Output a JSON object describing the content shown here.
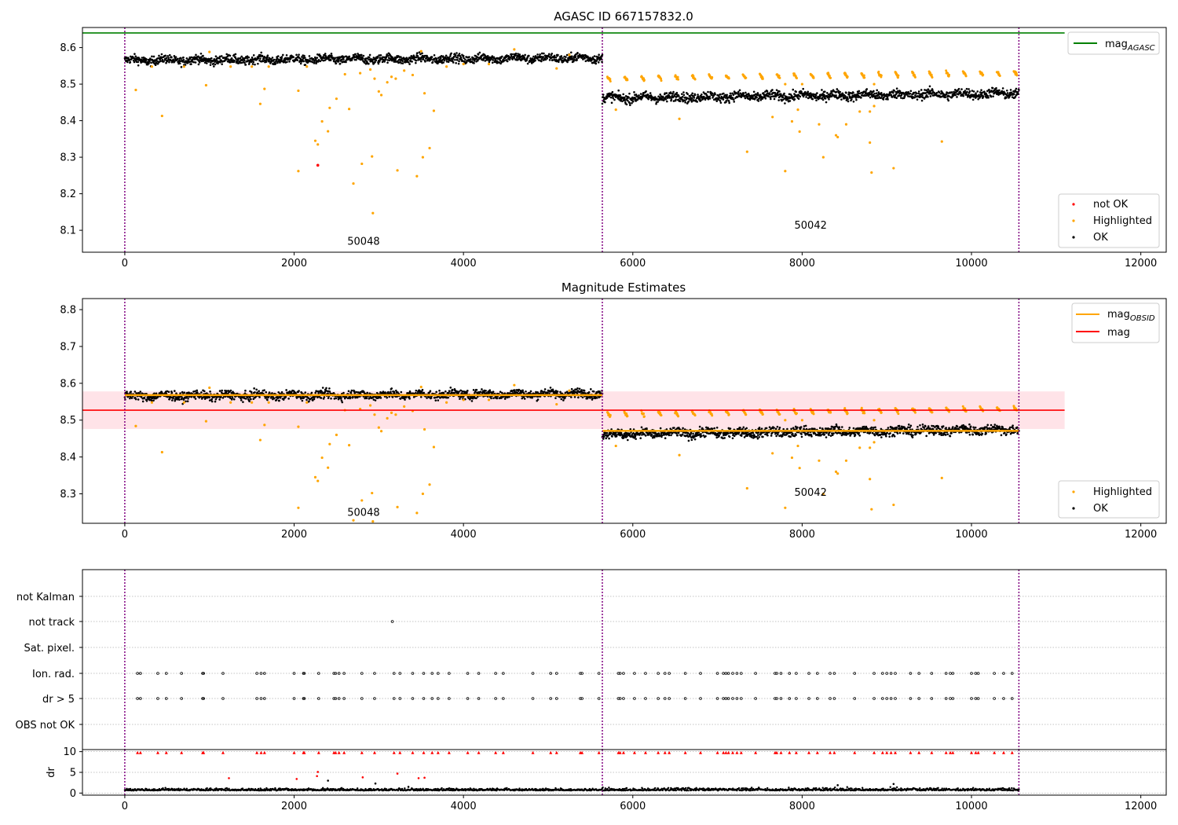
{
  "colors": {
    "ok": "#000000",
    "highlighted": "#FFA500",
    "not_ok": "#FF0000",
    "agasc_line": "#008000",
    "obsid_line": "#FFA500",
    "mag_line": "#FF0000",
    "mag_band": "#FFC0CB",
    "obs_boundary": "#800080",
    "grid": "#B0B0B0"
  },
  "chart_data": [
    {
      "type": "scatter",
      "title": "AGASC ID 667157832.0",
      "xlim": [
        -500,
        12300
      ],
      "ylim": [
        8.04,
        8.655
      ],
      "x_ticks": [
        0,
        2000,
        4000,
        6000,
        8000,
        10000,
        12000
      ],
      "y_ticks": [
        8.1,
        8.2,
        8.3,
        8.4,
        8.5,
        8.6
      ],
      "grid": false,
      "legends": [
        {
          "placement": "top-right",
          "entries": [
            {
              "label": "mag",
              "subscript": "AGASC",
              "marker": "line",
              "color": "#008000"
            }
          ]
        },
        {
          "placement": "bottom-right",
          "entries": [
            {
              "label": "not OK",
              "marker": "dot",
              "color": "#FF0000"
            },
            {
              "label": "Highlighted",
              "marker": "dot",
              "color": "#FFA500"
            },
            {
              "label": "OK",
              "marker": "dot",
              "color": "#000000"
            }
          ]
        }
      ],
      "hlines": [
        {
          "y": 8.64,
          "x_range": [
            -500,
            11100
          ],
          "color": "#008000",
          "name": "mag_AGASC"
        }
      ],
      "obs_boundaries": [
        0,
        5640,
        10560
      ],
      "obs_labels": [
        {
          "text": "50048",
          "x": 2820,
          "y": 8.06
        },
        {
          "text": "50042",
          "x": 8100,
          "y": 8.105
        }
      ],
      "series": [
        {
          "name": "OK",
          "segments": [
            {
              "x_range": [
                0,
                5640
              ],
              "level_start": 8.565,
              "level_end": 8.572,
              "spread": 0.01
            },
            {
              "x_range": [
                5640,
                10560
              ],
              "level_start": 8.462,
              "level_end": 8.475,
              "spread": 0.011
            }
          ]
        },
        {
          "name": "Highlighted",
          "points": [
            [
              130,
              8.484
            ],
            [
              320,
              8.548
            ],
            [
              440,
              8.413
            ],
            [
              700,
              8.548
            ],
            [
              960,
              8.497
            ],
            [
              1000,
              8.588
            ],
            [
              1250,
              8.548
            ],
            [
              1500,
              8.548
            ],
            [
              1600,
              8.446
            ],
            [
              1650,
              8.487
            ],
            [
              1700,
              8.548
            ],
            [
              2050,
              8.482
            ],
            [
              2050,
              8.262
            ],
            [
              2150,
              8.548
            ],
            [
              2250,
              8.345
            ],
            [
              2280,
              8.335
            ],
            [
              2330,
              8.398
            ],
            [
              2400,
              8.371
            ],
            [
              2420,
              8.435
            ],
            [
              2500,
              8.46
            ],
            [
              2600,
              8.527
            ],
            [
              2650,
              8.432
            ],
            [
              2700,
              8.228
            ],
            [
              2780,
              8.53
            ],
            [
              2800,
              8.282
            ],
            [
              2900,
              8.54
            ],
            [
              2920,
              8.302
            ],
            [
              2930,
              8.147
            ],
            [
              2950,
              8.515
            ],
            [
              3000,
              8.48
            ],
            [
              3030,
              8.47
            ],
            [
              3100,
              8.505
            ],
            [
              3150,
              8.52
            ],
            [
              3200,
              8.515
            ],
            [
              3220,
              8.264
            ],
            [
              3300,
              8.537
            ],
            [
              3400,
              8.525
            ],
            [
              3450,
              8.248
            ],
            [
              3500,
              8.59
            ],
            [
              3520,
              8.3
            ],
            [
              3540,
              8.475
            ],
            [
              3600,
              8.325
            ],
            [
              3650,
              8.427
            ],
            [
              3800,
              8.548
            ],
            [
              4000,
              8.555
            ],
            [
              4300,
              8.555
            ],
            [
              4600,
              8.595
            ],
            [
              5100,
              8.543
            ],
            [
              5250,
              8.58
            ],
            [
              5800,
              8.43
            ],
            [
              6550,
              8.405
            ],
            [
              7350,
              8.315
            ],
            [
              7650,
              8.41
            ],
            [
              7800,
              8.262
            ],
            [
              7880,
              8.398
            ],
            [
              7950,
              8.43
            ],
            [
              7970,
              8.37
            ],
            [
              8200,
              8.39
            ],
            [
              8250,
              8.3
            ],
            [
              8400,
              8.36
            ],
            [
              8420,
              8.355
            ],
            [
              8520,
              8.39
            ],
            [
              8680,
              8.425
            ],
            [
              8800,
              8.425
            ],
            [
              8800,
              8.34
            ],
            [
              8820,
              8.258
            ],
            [
              8850,
              8.5
            ],
            [
              9080,
              8.27
            ],
            [
              9650,
              8.343
            ],
            [
              7800,
              8.5
            ],
            [
              8000,
              8.5
            ],
            [
              8850,
              8.44
            ]
          ]
        },
        {
          "name": "Highlighted periodic",
          "x_start": 5700,
          "x_end": 10560,
          "period": 200,
          "level_start": 8.515,
          "level_end": 8.53,
          "amplitude": 0.012
        },
        {
          "name": "not OK",
          "points": [
            [
              2280,
              8.278
            ]
          ]
        }
      ]
    },
    {
      "type": "scatter",
      "title": "Magnitude Estimates",
      "xlim": [
        -500,
        12300
      ],
      "ylim": [
        8.22,
        8.83
      ],
      "x_ticks": [
        0,
        2000,
        4000,
        6000,
        8000,
        10000,
        12000
      ],
      "y_ticks": [
        8.3,
        8.4,
        8.5,
        8.6,
        8.7,
        8.8
      ],
      "grid": false,
      "legends": [
        {
          "placement": "top-right",
          "entries": [
            {
              "label": "mag",
              "subscript": "OBSID",
              "marker": "line",
              "color": "#FFA500"
            },
            {
              "label": "mag",
              "marker": "line",
              "color": "#FF0000"
            }
          ]
        },
        {
          "placement": "bottom-right",
          "entries": [
            {
              "label": "Highlighted",
              "marker": "dot",
              "color": "#FFA500"
            },
            {
              "label": "OK",
              "marker": "dot",
              "color": "#000000"
            }
          ]
        }
      ],
      "hlines": [
        {
          "y": 8.527,
          "x_range": [
            -500,
            11100
          ],
          "color": "#FF0000",
          "name": "mag"
        }
      ],
      "band": {
        "y_range": [
          8.476,
          8.578
        ],
        "x_range": [
          -500,
          11100
        ]
      },
      "obsid_lines": [
        {
          "y": 8.568,
          "x_range": [
            0,
            5640
          ]
        },
        {
          "y": 8.471,
          "x_range": [
            5640,
            10560
          ]
        }
      ],
      "obs_boundaries": [
        0,
        5640,
        10560
      ],
      "obs_labels": [
        {
          "text": "50048",
          "x": 2820,
          "y": 8.24
        },
        {
          "text": "50042",
          "x": 8100,
          "y": 8.295
        }
      ]
    },
    {
      "type": "scatter",
      "title": "",
      "xlim": [
        -500,
        12300
      ],
      "categories": [
        "not Kalman",
        "not track",
        "Sat. pixel.",
        "Ion. rad.",
        "dr > 5",
        "OBS not OK"
      ],
      "flag_points": {
        "not track": [
          3160
        ],
        "Ion. rad.": [
          150,
          185,
          390,
          490,
          670,
          920,
          930,
          1160,
          1560,
          1610,
          1650,
          2000,
          2110,
          2120,
          2290,
          2470,
          2490,
          2530,
          2590,
          2800,
          2950,
          3180,
          3250,
          3400,
          3530,
          3630,
          3700,
          3830,
          4050,
          4180,
          4380,
          4470,
          4820,
          5030,
          5100,
          5380,
          5400,
          5600,
          5830,
          5850,
          5890,
          6020,
          6150,
          6300,
          6380,
          6430,
          6620,
          6800,
          7000,
          7070,
          7100,
          7130,
          7180,
          7230,
          7280,
          7450,
          7680,
          7700,
          7750,
          7850,
          7930,
          8080,
          8180,
          8330,
          8380,
          8620,
          8850,
          8950,
          9000,
          9050,
          9100,
          9280,
          9380,
          9530,
          9700,
          9750,
          9780,
          10000,
          10050,
          10080,
          10270,
          10380,
          10480
        ],
        "dr > 5": [
          150,
          185,
          390,
          490,
          670,
          920,
          930,
          1160,
          1560,
          1610,
          1650,
          2000,
          2110,
          2120,
          2290,
          2470,
          2490,
          2530,
          2590,
          2800,
          2950,
          3180,
          3250,
          3400,
          3530,
          3630,
          3700,
          3830,
          4050,
          4180,
          4380,
          4470,
          4820,
          5030,
          5100,
          5380,
          5400,
          5600,
          5830,
          5850,
          5890,
          6020,
          6150,
          6300,
          6380,
          6430,
          6620,
          6800,
          7000,
          7070,
          7100,
          7130,
          7180,
          7230,
          7280,
          7450,
          7680,
          7700,
          7750,
          7850,
          7930,
          8080,
          8180,
          8330,
          8380,
          8620,
          8850,
          8950,
          9000,
          9050,
          9100,
          9280,
          9380,
          9530,
          9700,
          9750,
          9780,
          10000,
          10050,
          10080,
          10270,
          10380,
          10480
        ]
      },
      "obs_boundaries": [
        0,
        5640,
        10560
      ]
    },
    {
      "type": "scatter",
      "title": "",
      "ylabel": "dr",
      "xlim": [
        -500,
        12300
      ],
      "ylim": [
        -0.5,
        10.5
      ],
      "x_ticks": [
        0,
        2000,
        4000,
        6000,
        8000,
        10000,
        12000
      ],
      "y_ticks": [
        0,
        5,
        10
      ],
      "dr_ok_level": 0.6,
      "dr_outliers_red": [
        [
          1230,
          3.6
        ],
        [
          2030,
          3.4
        ],
        [
          2270,
          4.1
        ],
        [
          2280,
          5.1
        ],
        [
          2810,
          3.8
        ],
        [
          3220,
          4.7
        ],
        [
          3470,
          3.6
        ],
        [
          3540,
          3.7
        ]
      ],
      "dr_outliers_black": [
        [
          2400,
          3.0
        ],
        [
          2960,
          2.3
        ],
        [
          3350,
          1.5
        ],
        [
          8420,
          1.9
        ],
        [
          9080,
          2.2
        ]
      ],
      "dr_clipped_x": [
        150,
        185,
        390,
        490,
        670,
        920,
        930,
        1160,
        1560,
        1610,
        1650,
        2000,
        2110,
        2120,
        2290,
        2470,
        2490,
        2530,
        2590,
        2800,
        2950,
        3180,
        3250,
        3400,
        3530,
        3630,
        3700,
        3830,
        4050,
        4180,
        4380,
        4470,
        4820,
        5030,
        5100,
        5380,
        5400,
        5600,
        5830,
        5850,
        5890,
        6020,
        6150,
        6300,
        6380,
        6430,
        6620,
        6800,
        7000,
        7070,
        7100,
        7130,
        7180,
        7230,
        7280,
        7450,
        7680,
        7700,
        7750,
        7850,
        7930,
        8080,
        8180,
        8330,
        8380,
        8620,
        8850,
        8950,
        9000,
        9050,
        9100,
        9280,
        9380,
        9530,
        9700,
        9750,
        9780,
        10000,
        10050,
        10080,
        10270,
        10380,
        10480
      ],
      "obs_boundaries": [
        0,
        5640,
        10560
      ]
    }
  ]
}
